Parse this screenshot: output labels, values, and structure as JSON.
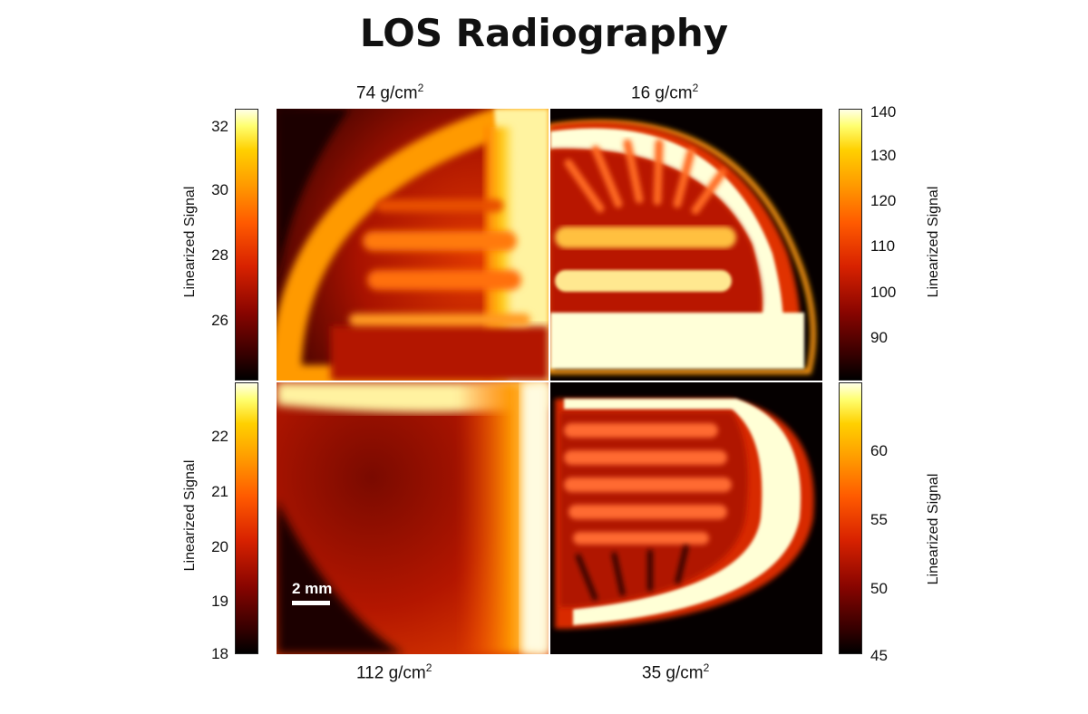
{
  "title": "LOS Radiography",
  "panels": {
    "top_left": {
      "density": "74 g/cm",
      "unit_sup": "2"
    },
    "top_right": {
      "density": "16 g/cm",
      "unit_sup": "2"
    },
    "bottom_left": {
      "density": "112 g/cm",
      "unit_sup": "2"
    },
    "bottom_right": {
      "density": "35 g/cm",
      "unit_sup": "2"
    }
  },
  "colorbar_label": "Linearized Signal",
  "colorbars": {
    "top_left": [
      "32",
      "30",
      "28",
      "26"
    ],
    "bottom_left": [
      "22",
      "21",
      "20",
      "19",
      "18"
    ],
    "top_right": [
      "140",
      "130",
      "120",
      "110",
      "100",
      "90"
    ],
    "bottom_right": [
      "60",
      "55",
      "50",
      "45"
    ]
  },
  "scale_bar": "2 mm",
  "colormap": "hot",
  "colors": {
    "dark": "#000000",
    "red": "#d82200",
    "orange": "#ff9a00",
    "yellow": "#ffff70",
    "white": "#ffffe6"
  }
}
